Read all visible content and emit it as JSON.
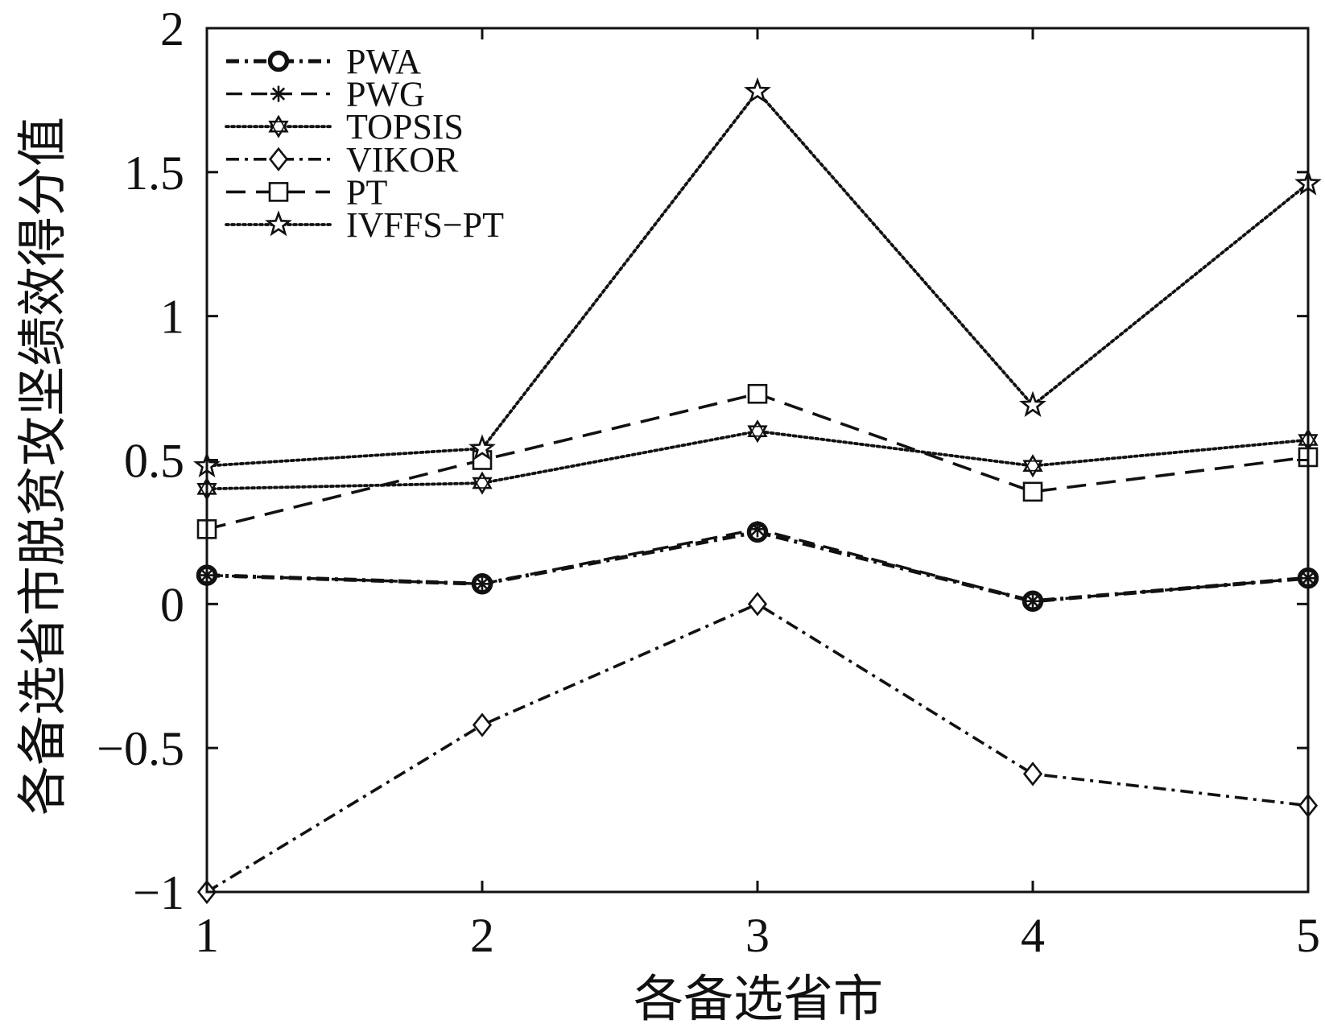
{
  "chart_data": {
    "type": "line",
    "x": [
      1,
      2,
      3,
      4,
      5
    ],
    "xlabel": "各备选省市",
    "ylabel": "各备选省市脱贫攻坚绩效得分值",
    "xlim": [
      1,
      5
    ],
    "ylim": [
      -1,
      2
    ],
    "xticks": [
      1,
      2,
      3,
      4,
      5
    ],
    "xtick_labels": [
      "1",
      "2",
      "3",
      "4",
      "5"
    ],
    "yticks": [
      2,
      1.5,
      1,
      0.5,
      0,
      -0.5,
      -1
    ],
    "ytick_labels": [
      "2",
      "1.5",
      "1",
      "0.5",
      "0",
      "−0.5",
      "−1"
    ],
    "grid": false,
    "legend": "top-left",
    "series": [
      {
        "name": "PWA",
        "values": [
          0.1,
          0.07,
          0.25,
          0.01,
          0.09
        ],
        "line_style": "dash-dot-bold",
        "marker": "circle"
      },
      {
        "name": "PWG",
        "values": [
          0.1,
          0.07,
          0.26,
          0.01,
          0.09
        ],
        "line_style": "dashed",
        "marker": "asterisk"
      },
      {
        "name": "TOPSIS",
        "values": [
          0.4,
          0.42,
          0.6,
          0.48,
          0.57
        ],
        "line_style": "dotted",
        "marker": "hexagram"
      },
      {
        "name": "VIKOR",
        "values": [
          -1.0,
          -0.42,
          0.0,
          -0.59,
          -0.7
        ],
        "line_style": "dash-dot",
        "marker": "diamond"
      },
      {
        "name": "PT",
        "values": [
          0.26,
          0.5,
          0.73,
          0.39,
          0.51
        ],
        "line_style": "dashed-long",
        "marker": "square"
      },
      {
        "name": "IVFFS−PT",
        "values": [
          0.48,
          0.54,
          1.78,
          0.69,
          1.46
        ],
        "line_style": "dotted",
        "marker": "pentagram"
      }
    ]
  }
}
